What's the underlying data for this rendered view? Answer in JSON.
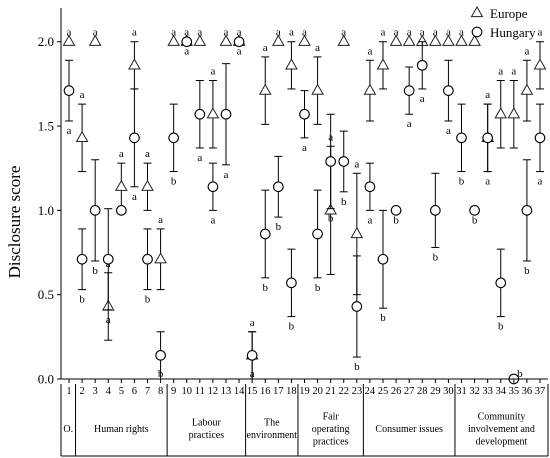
{
  "chart_data": {
    "type": "scatter",
    "ylabel": "Disclosure score",
    "xlabel": "",
    "ylim": [
      0,
      2.2
    ],
    "yticks": [
      "0.0",
      "0.5",
      "1.0",
      "1.5",
      "2.0"
    ],
    "x": [
      1,
      2,
      3,
      4,
      5,
      6,
      7,
      8,
      9,
      10,
      11,
      12,
      13,
      14,
      15,
      16,
      17,
      18,
      19,
      20,
      21,
      22,
      23,
      24,
      25,
      26,
      27,
      28,
      29,
      30,
      31,
      32,
      33,
      34,
      35,
      36,
      37
    ],
    "groups": [
      {
        "label": "O.",
        "start": 1,
        "end": 1
      },
      {
        "label": "Human rights",
        "start": 2,
        "end": 8
      },
      {
        "label": "Labour practices",
        "start": 9,
        "end": 14
      },
      {
        "label": "The environment",
        "start": 15,
        "end": 18
      },
      {
        "label": "Fair operating practices",
        "start": 19,
        "end": 23
      },
      {
        "label": "Consumer issues",
        "start": 24,
        "end": 30
      },
      {
        "label": "Community involvement and development",
        "start": 31,
        "end": 37
      }
    ],
    "legend_position": "top-right",
    "series": [
      {
        "name": "Europe",
        "marker": "triangle",
        "values": [
          2.0,
          1.43,
          2.0,
          0.43,
          1.14,
          1.86,
          1.14,
          0.71,
          2.0,
          2.0,
          2.0,
          1.57,
          2.0,
          2.0,
          0.14,
          1.71,
          2.0,
          1.86,
          2.0,
          1.71,
          1.0,
          2.0,
          0.86,
          1.71,
          1.86,
          2.0,
          2.0,
          2.0,
          2.0,
          2.0,
          2.0,
          2.0,
          1.43,
          1.57,
          1.57,
          1.71,
          1.86
        ],
        "error": [
          0,
          0.2,
          0,
          0.2,
          0.14,
          0.14,
          0.14,
          0.18,
          0,
          0,
          0,
          0.2,
          0,
          0,
          0.14,
          0.2,
          0,
          0.14,
          0,
          0.2,
          0.38,
          0,
          0.36,
          0.18,
          0.14,
          0,
          0,
          0,
          0,
          0,
          0,
          0,
          0.2,
          0.2,
          0.2,
          0.18,
          0.14
        ],
        "labels": [
          "a",
          "a",
          "a",
          "a",
          "a",
          "a",
          "a",
          "a",
          "a",
          "a",
          "a",
          "a",
          "a",
          "a",
          "a",
          "a",
          "a",
          "a",
          "a",
          "a",
          "a",
          "a",
          "a",
          "a",
          "a",
          "a",
          "a",
          "a",
          "a",
          "a",
          "a",
          "a",
          "a",
          "a",
          "a",
          "a",
          "a"
        ]
      },
      {
        "name": "Hungary",
        "marker": "circle",
        "values": [
          1.71,
          0.71,
          1.0,
          0.71,
          1.0,
          1.43,
          0.71,
          0.14,
          1.43,
          2.0,
          1.57,
          1.14,
          1.57,
          2.0,
          0.14,
          0.86,
          1.14,
          0.57,
          1.57,
          0.86,
          1.29,
          1.29,
          0.43,
          1.14,
          0.71,
          1.0,
          1.71,
          1.86,
          1.0,
          1.71,
          1.43,
          1.0,
          1.43,
          0.57,
          0.0,
          1.0,
          1.43
        ],
        "error": [
          0.18,
          0.18,
          0.3,
          0.3,
          0,
          0.29,
          0.18,
          0.14,
          0.2,
          0,
          0.2,
          0.14,
          0.3,
          0,
          0.14,
          0.26,
          0.18,
          0.2,
          0.14,
          0.26,
          0.28,
          0.18,
          0.3,
          0.14,
          0.29,
          0,
          0.14,
          0.14,
          0.22,
          0.18,
          0.2,
          0,
          0.2,
          0.2,
          0,
          0.3,
          0.2
        ],
        "labels": [
          "a",
          "b",
          "b",
          "a",
          "",
          "a",
          "b",
          "b",
          "b",
          "a",
          "a",
          "a",
          "a",
          "a",
          "a",
          "b",
          "b",
          "b",
          "a",
          "b",
          "b",
          "b",
          "b",
          "a",
          "b",
          "b",
          "a",
          "a",
          "b",
          "a",
          "b",
          "b",
          "a",
          "b",
          "b",
          "b",
          "a"
        ]
      }
    ]
  }
}
